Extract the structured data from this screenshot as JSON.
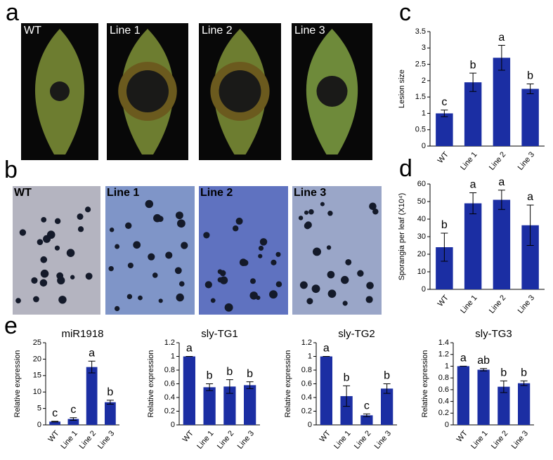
{
  "panel_labels": [
    "a",
    "b",
    "c",
    "d",
    "e"
  ],
  "photos_a": [
    "WT",
    "Line 1",
    "Line 2",
    "Line 3"
  ],
  "photos_b": [
    "WT",
    "Line 1",
    "Line 2",
    "Line 3"
  ],
  "chart_data": [
    {
      "type": "bar",
      "ylabel": "Lesion size",
      "categories": [
        "WT",
        "Line 1",
        "Line 2",
        "Line 3"
      ],
      "values": [
        1.0,
        1.95,
        2.7,
        1.75
      ],
      "errors": [
        0.1,
        0.28,
        0.38,
        0.15
      ],
      "letters": [
        "c",
        "b",
        "a",
        "b"
      ],
      "ylim": [
        0,
        3.5
      ],
      "yticks": [
        0,
        0.5,
        1,
        1.5,
        2,
        2.5,
        3,
        3.5
      ],
      "color": "#1b2ea3"
    },
    {
      "type": "bar",
      "ylabel": "Sporangia per leaf (X10⁴)",
      "categories": [
        "WT",
        "Line 1",
        "Line 2",
        "Line 3"
      ],
      "values": [
        24,
        49,
        51,
        36.5
      ],
      "errors": [
        8,
        6,
        5.5,
        11.5
      ],
      "letters": [
        "b",
        "a",
        "a",
        "a"
      ],
      "ylim": [
        0,
        60
      ],
      "yticks": [
        0,
        10,
        20,
        30,
        40,
        50,
        60
      ],
      "color": "#1b2ea3"
    },
    {
      "type": "bar",
      "title": "miR1918",
      "ylabel": "Relative expression",
      "categories": [
        "WT",
        "Line 1",
        "Line 2",
        "Line 3"
      ],
      "values": [
        1,
        1.8,
        17.6,
        6.9
      ],
      "errors": [
        0.1,
        0.4,
        1.8,
        0.6
      ],
      "letters": [
        "c",
        "c",
        "a",
        "b"
      ],
      "ylim": [
        0,
        25
      ],
      "yticks": [
        0,
        5,
        10,
        15,
        20,
        25
      ],
      "color": "#1b2ea3"
    },
    {
      "type": "bar",
      "title": "sly-TG1",
      "ylabel": "Relative expression",
      "categories": [
        "WT",
        "Line 1",
        "Line 2",
        "Line 3"
      ],
      "values": [
        1.0,
        0.55,
        0.56,
        0.58
      ],
      "errors": [
        0,
        0.05,
        0.1,
        0.05
      ],
      "letters": [
        "a",
        "b",
        "b",
        "b"
      ],
      "ylim": [
        0,
        1.2
      ],
      "yticks": [
        0,
        0.2,
        0.4,
        0.6,
        0.8,
        1,
        1.2
      ],
      "color": "#1b2ea3"
    },
    {
      "type": "bar",
      "title": "sly-TG2",
      "ylabel": "Relative expression",
      "categories": [
        "WT",
        "Line 1",
        "Line 2",
        "Line 3"
      ],
      "values": [
        1.0,
        0.42,
        0.14,
        0.53
      ],
      "errors": [
        0,
        0.15,
        0.02,
        0.07
      ],
      "letters": [
        "a",
        "b",
        "c",
        "b"
      ],
      "ylim": [
        0,
        1.2
      ],
      "yticks": [
        0,
        0.2,
        0.4,
        0.6,
        0.8,
        1,
        1.2
      ],
      "color": "#1b2ea3"
    },
    {
      "type": "bar",
      "title": "sly-TG3",
      "ylabel": "Relative expression",
      "categories": [
        "WT",
        "Line 1",
        "Line 2",
        "Line 3"
      ],
      "values": [
        1.0,
        0.94,
        0.65,
        0.71
      ],
      "errors": [
        0,
        0.02,
        0.1,
        0.04
      ],
      "letters": [
        "a",
        "ab",
        "b",
        "b"
      ],
      "ylim": [
        0,
        1.4
      ],
      "yticks": [
        0,
        0.2,
        0.4,
        0.6,
        0.8,
        1,
        1.2,
        1.4
      ],
      "color": "#1b2ea3"
    }
  ]
}
